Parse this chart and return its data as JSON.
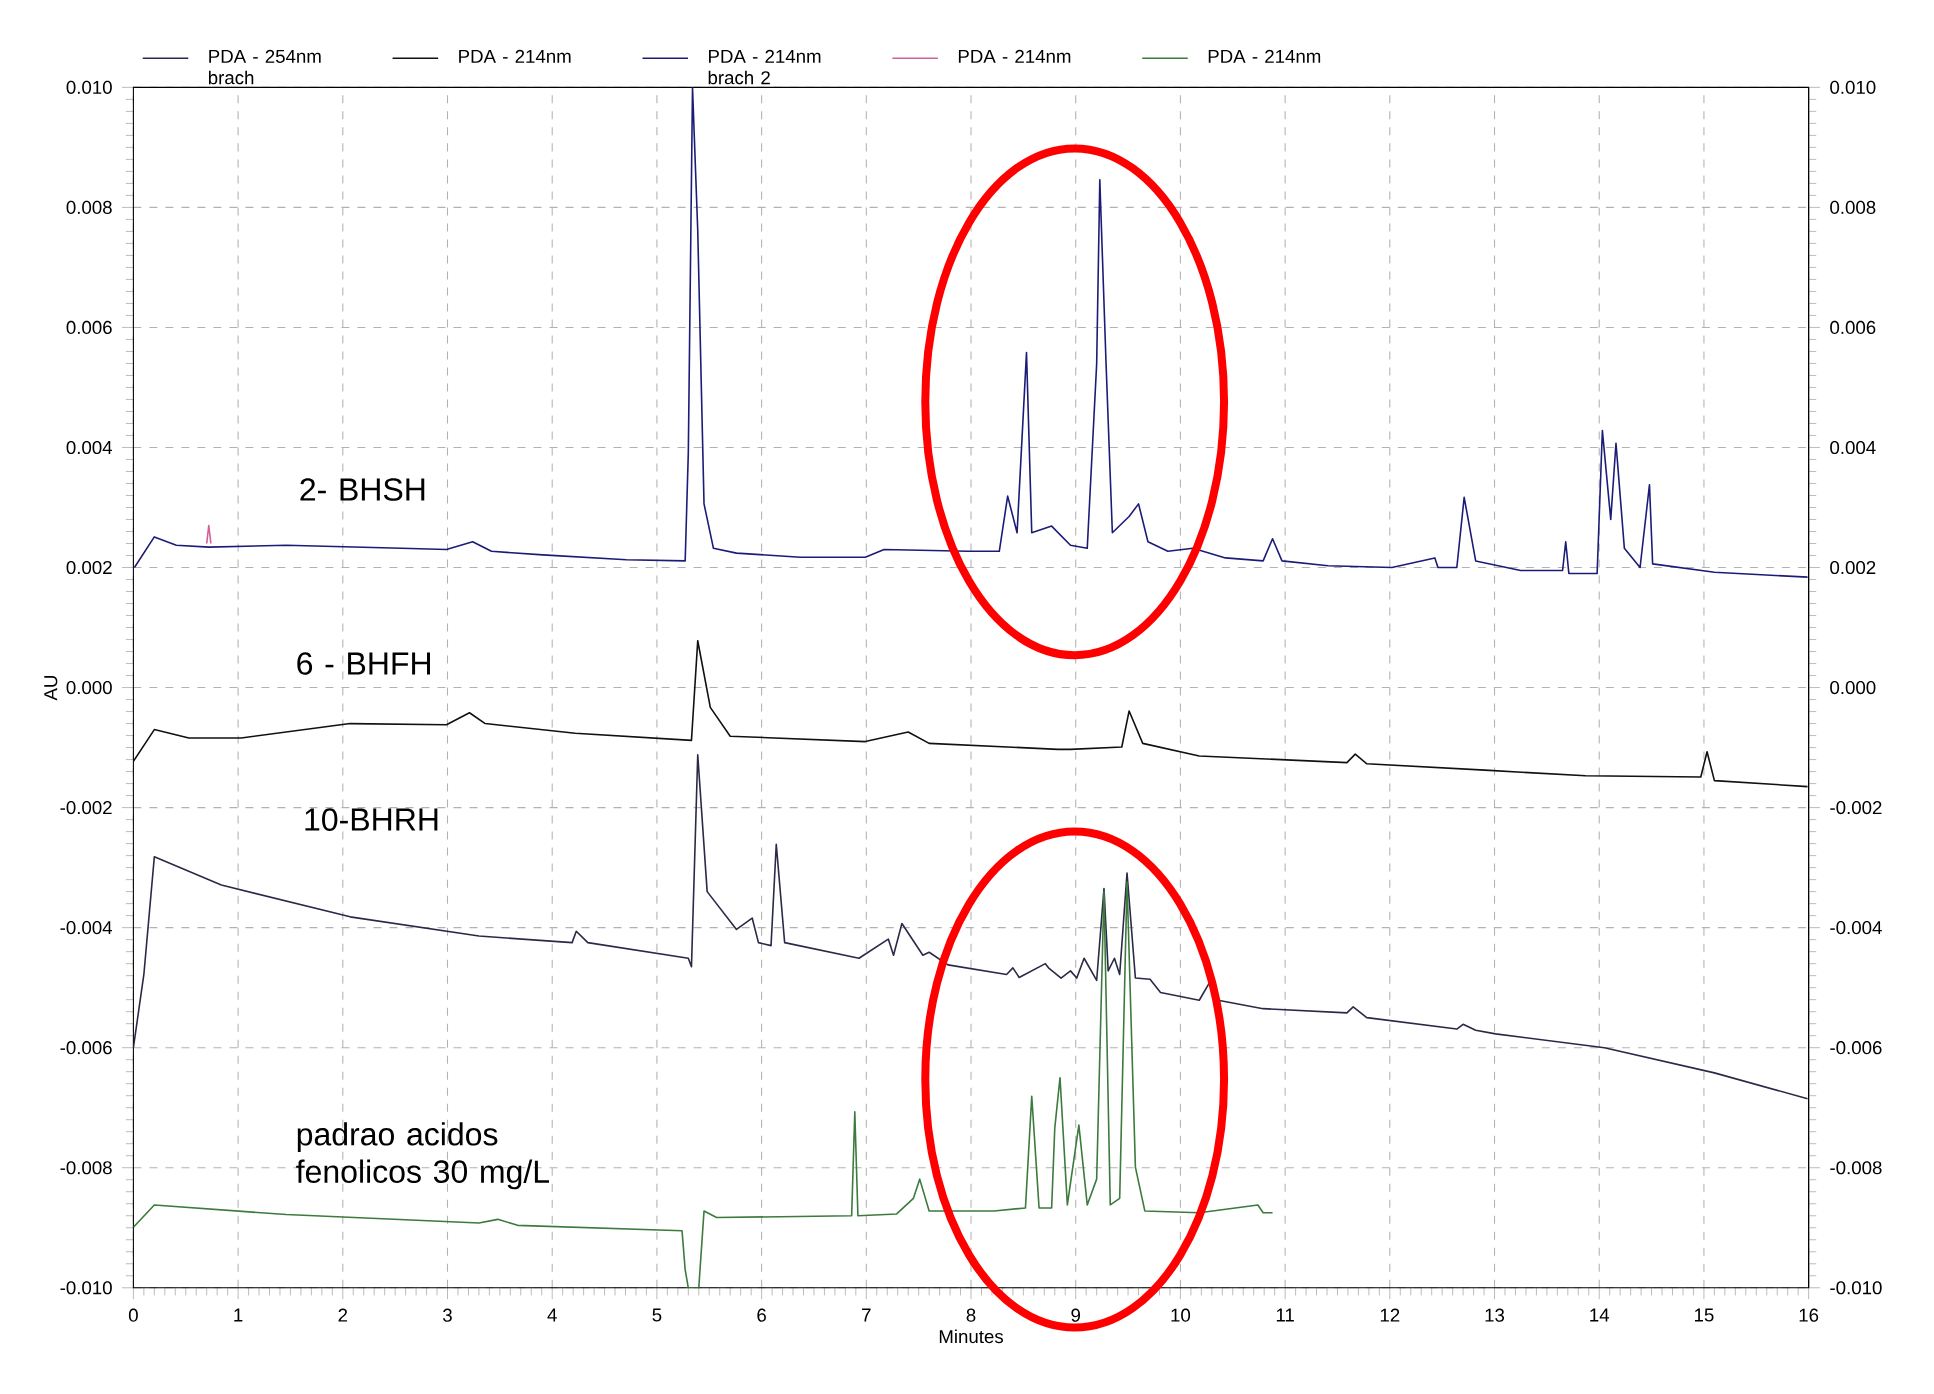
{
  "chart_data": {
    "type": "line",
    "xlabel": "Minutes",
    "ylabel": "AU",
    "xlim": [
      0,
      16
    ],
    "xticks": [
      0,
      1,
      2,
      3,
      4,
      5,
      6,
      7,
      8,
      9,
      10,
      11,
      12,
      13,
      14,
      15,
      16
    ],
    "ylim": [
      -0.01,
      0.01
    ],
    "yticks": [
      {
        "value": -0.01,
        "label": "-0.010"
      },
      {
        "value": -0.008,
        "label": "-0.008"
      },
      {
        "value": -0.006,
        "label": "-0.006"
      },
      {
        "value": -0.004,
        "label": "-0.004"
      },
      {
        "value": -0.002,
        "label": "-0.002"
      },
      {
        "value": 0,
        "label": "0.000"
      },
      {
        "value": 0.002,
        "label": "0.002"
      },
      {
        "value": 0.004,
        "label": "0.004"
      },
      {
        "value": 0.006,
        "label": "0.006"
      },
      {
        "value": 0.008,
        "label": "0.008"
      },
      {
        "value": 0.01,
        "label": "0.010"
      }
    ],
    "y2lim": [
      -0.01,
      0.01
    ],
    "y2ticks": [
      {
        "value": -0.01,
        "label": "-0.010"
      },
      {
        "value": -0.008,
        "label": "-0.008"
      },
      {
        "value": -0.006,
        "label": "-0.006"
      },
      {
        "value": -0.004,
        "label": "-0.004"
      },
      {
        "value": -0.002,
        "label": "-0.002"
      },
      {
        "value": 0,
        "label": "0.000"
      },
      {
        "value": 0.002,
        "label": "0.002"
      },
      {
        "value": 0.004,
        "label": "0.004"
      },
      {
        "value": 0.006,
        "label": "0.006"
      },
      {
        "value": 0.008,
        "label": "0.008"
      },
      {
        "value": 0.01,
        "label": "0.010"
      }
    ],
    "grid": true,
    "legend": "top",
    "line_style": "solid",
    "series": [
      {
        "name": "PDA - 254nm brach",
        "color": "#2a2a48",
        "x": [
          0,
          0.1,
          0.2,
          0.84,
          2.07,
          3.3,
          4.19,
          4.23,
          4.34,
          5.3,
          5.33,
          5.39,
          5.48,
          5.76,
          5.91,
          5.97,
          6.09,
          6.14,
          6.22,
          6.93,
          7.21,
          7.26,
          7.34,
          7.54,
          7.6,
          7.78,
          8.34,
          8.4,
          8.46,
          8.71,
          8.74,
          8.86,
          8.95,
          9.01,
          9.08,
          9.2,
          9.27,
          9.31,
          9.37,
          9.42,
          9.49,
          9.57,
          9.71,
          9.81,
          10.18,
          10.29,
          10.36,
          10.79,
          11.59,
          11.65,
          11.78,
          12.64,
          12.7,
          12.82,
          13.01,
          14.05,
          15.1,
          15.99
        ],
        "values": [
          -0.006,
          -0.00478,
          -0.00282,
          -0.00329,
          -0.00382,
          -0.00414,
          -0.00425,
          -0.00406,
          -0.00425,
          -0.00451,
          -0.00465,
          -0.00112,
          -0.0034,
          -0.00403,
          -0.00384,
          -0.00425,
          -0.0043,
          -0.00261,
          -0.00425,
          -0.00451,
          -0.00419,
          -0.00446,
          -0.00393,
          -0.00446,
          -0.00441,
          -0.00462,
          -0.00478,
          -0.00467,
          -0.00483,
          -0.0046,
          -0.00467,
          -0.00484,
          -0.00472,
          -0.00484,
          -0.00451,
          -0.00488,
          -0.00335,
          -0.00472,
          -0.00451,
          -0.00478,
          -0.00309,
          -0.00484,
          -0.00486,
          -0.00508,
          -0.00521,
          -0.00488,
          -0.00521,
          -0.00535,
          -0.00542,
          -0.00532,
          -0.0055,
          -0.00569,
          -0.00561,
          -0.00571,
          -0.00577,
          -0.006,
          -0.00642,
          -0.00685
        ]
      },
      {
        "name": "PDA - 214nm",
        "color": "#111111",
        "x": [
          0,
          0.2,
          0.53,
          1.03,
          2.07,
          2.99,
          3.21,
          3.36,
          4.22,
          5.33,
          5.39,
          5.51,
          5.7,
          6.99,
          7.4,
          7.6,
          8.83,
          8.95,
          9.44,
          9.51,
          9.64,
          10.18,
          11.59,
          11.67,
          11.78,
          12.95,
          13.87,
          14.97,
          15.03,
          15.1,
          15.99
        ],
        "values": [
          -0.00123,
          -0.0007,
          -0.00084,
          -0.00084,
          -0.0006,
          -0.00062,
          -0.00042,
          -0.0006,
          -0.00076,
          -0.00088,
          0.00078,
          -0.00033,
          -0.00081,
          -0.0009,
          -0.00074,
          -0.00093,
          -0.00103,
          -0.00103,
          -0.00099,
          -0.00039,
          -0.00093,
          -0.00114,
          -0.00125,
          -0.00111,
          -0.00127,
          -0.00138,
          -0.00147,
          -0.00149,
          -0.00107,
          -0.00155,
          -0.00165
        ]
      },
      {
        "name": "PDA - 214nm brach 2",
        "color": "#1c1c78",
        "x": [
          0.01,
          0.2,
          0.41,
          0.72,
          1.46,
          2.56,
          2.99,
          3.24,
          3.42,
          3.91,
          4.71,
          5.27,
          5.3,
          5.34,
          5.39,
          5.45,
          5.54,
          5.76,
          6.37,
          6.99,
          7.17,
          7.97,
          8.27,
          8.35,
          8.44,
          8.53,
          8.58,
          8.77,
          8.95,
          9.11,
          9.2,
          9.23,
          9.29,
          9.35,
          9.51,
          9.6,
          9.69,
          9.88,
          10.12,
          10.43,
          10.79,
          10.88,
          10.97,
          11.41,
          12.02,
          12.43,
          12.46,
          12.64,
          12.71,
          12.82,
          13.25,
          13.65,
          13.68,
          13.71,
          13.98,
          14.03,
          14.11,
          14.16,
          14.24,
          14.39,
          14.48,
          14.51,
          15.1,
          15.99
        ],
        "values": [
          0.002,
          0.00251,
          0.00237,
          0.00234,
          0.00237,
          0.00232,
          0.0023,
          0.00243,
          0.00227,
          0.00221,
          0.00213,
          0.00211,
          0.00391,
          0.01,
          0.00762,
          0.00306,
          0.00232,
          0.00224,
          0.00217,
          0.00217,
          0.0023,
          0.00227,
          0.00227,
          0.00319,
          0.00258,
          0.00558,
          0.00258,
          0.00269,
          0.00237,
          0.00232,
          0.00539,
          0.00846,
          0.00539,
          0.00258,
          0.00285,
          0.00306,
          0.00243,
          0.00227,
          0.00232,
          0.00216,
          0.00211,
          0.00248,
          0.00211,
          0.00203,
          0.002,
          0.00216,
          0.002,
          0.002,
          0.00317,
          0.00211,
          0.00195,
          0.00195,
          0.00243,
          0.0019,
          0.0019,
          0.00428,
          0.0028,
          0.00407,
          0.00232,
          0.002,
          0.00338,
          0.00206,
          0.00192,
          0.00184
        ]
      },
      {
        "name": "PDA - 214nm",
        "color": "#d2609a",
        "x": [
          0.7,
          0.72,
          0.74
        ],
        "values": [
          0.0024,
          0.0027,
          0.0024
        ]
      },
      {
        "name": "PDA - 214nm",
        "color": "#3d7a3d",
        "x": [
          0,
          0.2,
          1.46,
          3.3,
          3.48,
          3.67,
          5.24,
          5.27,
          5.3,
          5.4,
          5.45,
          5.57,
          6.86,
          6.89,
          6.92,
          7.29,
          7.45,
          7.51,
          7.6,
          8.22,
          8.52,
          8.58,
          8.65,
          8.77,
          8.8,
          8.85,
          8.92,
          9.03,
          9.11,
          9.2,
          9.27,
          9.33,
          9.42,
          9.49,
          9.57,
          9.66,
          10.18,
          10.74,
          10.79,
          10.88
        ],
        "values": [
          -0.00899,
          -0.00862,
          -0.00878,
          -0.00892,
          -0.00886,
          -0.00896,
          -0.00905,
          -0.0097,
          -0.01,
          -0.01,
          -0.00872,
          -0.00883,
          -0.0088,
          -0.00707,
          -0.0088,
          -0.00877,
          -0.00851,
          -0.00819,
          -0.00872,
          -0.00872,
          -0.00867,
          -0.00681,
          -0.00867,
          -0.00867,
          -0.00734,
          -0.0065,
          -0.00862,
          -0.00729,
          -0.00862,
          -0.00819,
          -0.0034,
          -0.00862,
          -0.00851,
          -0.00324,
          -0.00799,
          -0.00872,
          -0.00875,
          -0.00862,
          -0.00875,
          -0.00875
        ]
      }
    ],
    "annotations": [
      "2- BHSH",
      "6 - BHFH",
      "10-BHRH",
      "padrao acidos fenolicos 30 mg/L"
    ]
  }
}
